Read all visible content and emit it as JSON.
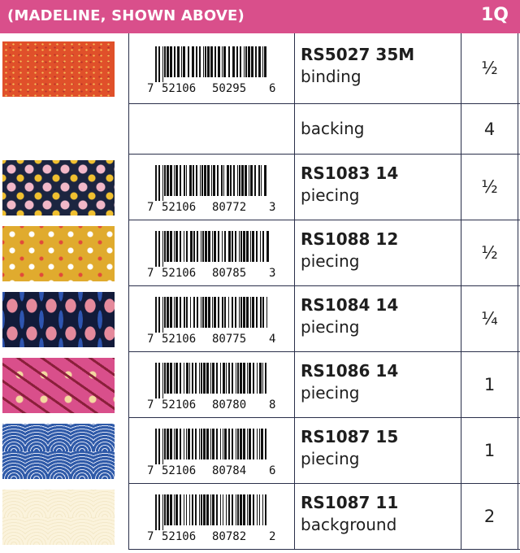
{
  "header": {
    "title": "(MADELINE, SHOWN ABOVE)",
    "label": "1Q",
    "color": "#d94f8b"
  },
  "rows": [
    {
      "barcode": [
        "7",
        "52106",
        "50295",
        "6"
      ],
      "sku": "RS5027 35M",
      "use": "binding",
      "qty": "½",
      "swatch": "orange-speckle"
    },
    {
      "barcode": null,
      "sku": "",
      "use": "backing",
      "qty": "4",
      "swatch": null
    },
    {
      "barcode": [
        "7",
        "52106",
        "80772",
        "3"
      ],
      "sku": "RS1083 14",
      "use": "piecing",
      "qty": "½",
      "swatch": "navy-geometric-shapes"
    },
    {
      "barcode": [
        "7",
        "52106",
        "80785",
        "3"
      ],
      "sku": "RS1088 12",
      "use": "piecing",
      "qty": "½",
      "swatch": "mustard-floral"
    },
    {
      "barcode": [
        "7",
        "52106",
        "80775",
        "4"
      ],
      "sku": "RS1084 14",
      "use": "piecing",
      "qty": "¼",
      "swatch": "navy-tulips"
    },
    {
      "barcode": [
        "7",
        "52106",
        "80780",
        "8"
      ],
      "sku": "RS1086 14",
      "use": "piecing",
      "qty": "1",
      "swatch": "pink-vines"
    },
    {
      "barcode": [
        "7",
        "52106",
        "80784",
        "6"
      ],
      "sku": "RS1087 15",
      "use": "piecing",
      "qty": "1",
      "swatch": "blue-arches"
    },
    {
      "barcode": [
        "7",
        "52106",
        "80782",
        "2"
      ],
      "sku": "RS1087 11",
      "use": "background",
      "qty": "2",
      "swatch": "cream-arches"
    }
  ]
}
